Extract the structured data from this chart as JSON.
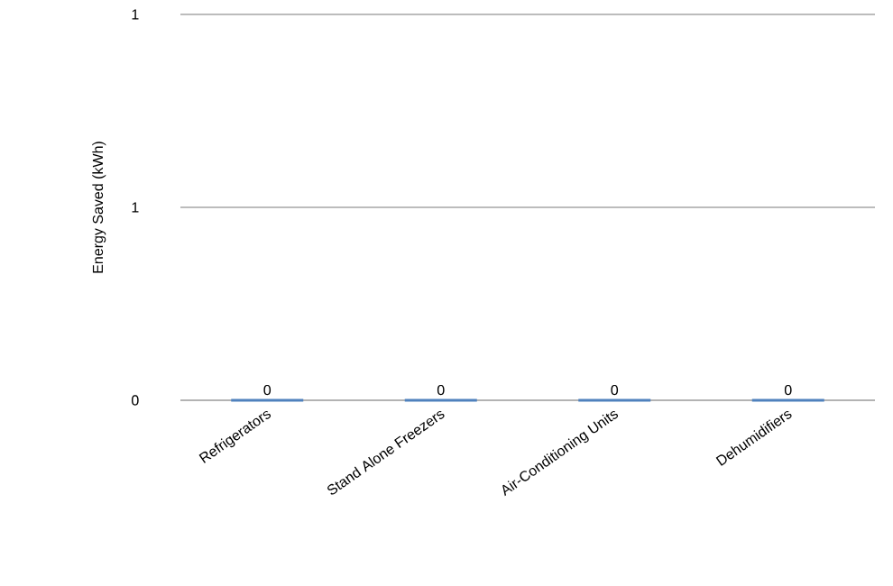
{
  "chart_data": {
    "type": "bar",
    "ylabel": "Energy Saved (kWh)",
    "categories": [
      "Refrigerators",
      "Stand Alone Freezers",
      "Air-Conditioning Units",
      "Dehumidifiers"
    ],
    "values": [
      0,
      0,
      0,
      0
    ],
    "color": "#4f81bd",
    "ylim": [
      0,
      1
    ],
    "yticks": [
      0,
      {
        "value": 0.5,
        "label": "1"
      },
      1
    ],
    "grid": "y",
    "data_labels": true
  }
}
